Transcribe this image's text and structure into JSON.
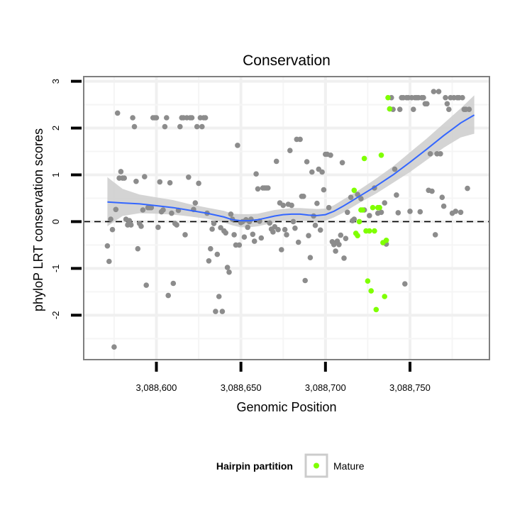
{
  "chart_data": {
    "type": "scatter",
    "title": "Conservation",
    "xlabel": "Genomic Position",
    "ylabel": "phyloP LRT conservation scores",
    "xlim": [
      3088557,
      3088797
    ],
    "ylim": [
      -2.95,
      3.1
    ],
    "x_ticks": [
      3088600,
      3088650,
      3088700,
      3088750
    ],
    "x_tick_labels": [
      "3,088,600",
      "3,088,650",
      "3,088,700",
      "3,088,750"
    ],
    "y_ticks": [
      -2,
      -1,
      0,
      1,
      2,
      3
    ],
    "y_tick_labels": [
      "-2",
      "-1",
      "0",
      "1",
      "2",
      "3"
    ],
    "reference_line": {
      "y": 0,
      "style": "dashed",
      "color": "#000000"
    },
    "grid": true,
    "legend": {
      "title": "Hairpin partition",
      "position": "bottom",
      "entries": [
        {
          "label": "Mature",
          "color": "#7fff00"
        }
      ]
    },
    "colors": {
      "other_points": "#8c8c8c",
      "mature_points": "#7fff00",
      "smooth_line": "#3366ff",
      "ribbon": "#cccccc",
      "panel_border": "#7f7f7f"
    },
    "series": [
      {
        "name": "",
        "color": "#8c8c8c",
        "points": [
          [
            3088571,
            -0.52
          ],
          [
            3088572,
            -0.85
          ],
          [
            3088573,
            0.05
          ],
          [
            3088574,
            -0.17
          ],
          [
            3088575,
            -2.68
          ],
          [
            3088576,
            0.26
          ],
          [
            3088577,
            2.32
          ],
          [
            3088578,
            0.93
          ],
          [
            3088579,
            1.07
          ],
          [
            3088580,
            0.93
          ],
          [
            3088581,
            0.93
          ],
          [
            3088582,
            0.05
          ],
          [
            3088583,
            -0.07
          ],
          [
            3088584,
            0.02
          ],
          [
            3088585,
            -0.07
          ],
          [
            3088586,
            2.22
          ],
          [
            3088587,
            2.03
          ],
          [
            3088588,
            0.86
          ],
          [
            3088589,
            -0.58
          ],
          [
            3088590,
            -0.04
          ],
          [
            3088591,
            -0.1
          ],
          [
            3088592,
            0.25
          ],
          [
            3088593,
            0.96
          ],
          [
            3088594,
            -1.36
          ],
          [
            3088595,
            0.3
          ],
          [
            3088596,
            0.3
          ],
          [
            3088597,
            0.3
          ],
          [
            3088598,
            2.22
          ],
          [
            3088599,
            2.22
          ],
          [
            3088600,
            2.22
          ],
          [
            3088601,
            -0.12
          ],
          [
            3088602,
            0.85
          ],
          [
            3088603,
            0.21
          ],
          [
            3088604,
            0.25
          ],
          [
            3088605,
            2.03
          ],
          [
            3088606,
            2.22
          ],
          [
            3088607,
            -1.58
          ],
          [
            3088608,
            0.83
          ],
          [
            3088609,
            0.18
          ],
          [
            3088610,
            -1.32
          ],
          [
            3088611,
            -0.04
          ],
          [
            3088612,
            -0.07
          ],
          [
            3088613,
            0.24
          ],
          [
            3088614,
            2.03
          ],
          [
            3088615,
            2.22
          ],
          [
            3088616,
            2.22
          ],
          [
            3088617,
            -0.28
          ],
          [
            3088618,
            2.22
          ],
          [
            3088619,
            0.95
          ],
          [
            3088620,
            2.22
          ],
          [
            3088621,
            2.22
          ],
          [
            3088622,
            0.26
          ],
          [
            3088623,
            0.4
          ],
          [
            3088624,
            2.03
          ],
          [
            3088625,
            0.82
          ],
          [
            3088626,
            2.22
          ],
          [
            3088627,
            2.03
          ],
          [
            3088628,
            2.22
          ],
          [
            3088629,
            2.22
          ],
          [
            3088630,
            0.18
          ],
          [
            3088631,
            -0.84
          ],
          [
            3088632,
            -0.58
          ],
          [
            3088633,
            -0.16
          ],
          [
            3088634,
            -0.04
          ],
          [
            3088635,
            -1.92
          ],
          [
            3088636,
            -0.7
          ],
          [
            3088637,
            -1.6
          ],
          [
            3088638,
            -0.13
          ],
          [
            3088639,
            -1.92
          ],
          [
            3088640,
            -0.2
          ],
          [
            3088641,
            -0.24
          ],
          [
            3088642,
            -0.98
          ],
          [
            3088643,
            -1.08
          ],
          [
            3088644,
            0.16
          ],
          [
            3088645,
            0.05
          ],
          [
            3088646,
            -0.28
          ],
          [
            3088647,
            -0.5
          ],
          [
            3088648,
            1.63
          ],
          [
            3088649,
            -0.5
          ],
          [
            3088650,
            -0.02
          ],
          [
            3088651,
            0.0
          ],
          [
            3088652,
            -0.33
          ],
          [
            3088653,
            0.04
          ],
          [
            3088654,
            -0.12
          ],
          [
            3088655,
            0.0
          ],
          [
            3088656,
            0.05
          ],
          [
            3088657,
            -0.27
          ],
          [
            3088658,
            -0.42
          ],
          [
            3088659,
            1.02
          ],
          [
            3088660,
            0.7
          ],
          [
            3088661,
            0.01
          ],
          [
            3088662,
            -0.35
          ],
          [
            3088663,
            0.72
          ],
          [
            3088664,
            0.72
          ],
          [
            3088665,
            0.72
          ],
          [
            3088666,
            0.72
          ],
          [
            3088667,
            -0.03
          ],
          [
            3088668,
            -0.16
          ],
          [
            3088669,
            -0.22
          ],
          [
            3088670,
            -0.11
          ],
          [
            3088671,
            1.29
          ],
          [
            3088672,
            -0.17
          ],
          [
            3088673,
            0.4
          ],
          [
            3088674,
            -0.6
          ],
          [
            3088675,
            0.35
          ],
          [
            3088676,
            -0.17
          ],
          [
            3088677,
            -0.28
          ],
          [
            3088678,
            0.37
          ],
          [
            3088679,
            1.52
          ],
          [
            3088680,
            0.35
          ],
          [
            3088681,
            0.0
          ],
          [
            3088682,
            -0.14
          ],
          [
            3088683,
            1.76
          ],
          [
            3088684,
            -0.44
          ],
          [
            3088685,
            1.76
          ],
          [
            3088686,
            0.54
          ],
          [
            3088687,
            0.54
          ],
          [
            3088688,
            -1.26
          ],
          [
            3088689,
            1.28
          ],
          [
            3088690,
            -0.3
          ],
          [
            3088691,
            -0.77
          ],
          [
            3088692,
            1.06
          ],
          [
            3088693,
            0.12
          ],
          [
            3088694,
            -0.08
          ],
          [
            3088695,
            0.39
          ],
          [
            3088696,
            1.12
          ],
          [
            3088697,
            -0.18
          ],
          [
            3088698,
            1.06
          ],
          [
            3088699,
            0.68
          ],
          [
            3088700,
            1.44
          ],
          [
            3088701,
            1.44
          ],
          [
            3088702,
            0.3
          ],
          [
            3088703,
            1.42
          ],
          [
            3088704,
            -0.43
          ],
          [
            3088705,
            -0.49
          ],
          [
            3088706,
            -0.63
          ],
          [
            3088707,
            -0.42
          ],
          [
            3088708,
            -0.49
          ],
          [
            3088709,
            -0.29
          ],
          [
            3088710,
            1.26
          ],
          [
            3088711,
            -0.78
          ],
          [
            3088712,
            -0.36
          ],
          [
            3088713,
            0.2
          ],
          [
            3088715,
            0.52
          ],
          [
            3088716,
            0.02
          ],
          [
            3088717,
            0.05
          ],
          [
            3088719,
            0.58
          ],
          [
            3088721,
            0.49
          ],
          [
            3088723,
            0.25
          ],
          [
            3088726,
            0.13
          ],
          [
            3088729,
            0.72
          ],
          [
            3088731,
            0.18
          ],
          [
            3088733,
            0.2
          ],
          [
            3088735,
            0.4
          ],
          [
            3088736,
            -0.48
          ],
          [
            3088738,
            2.41
          ],
          [
            3088739,
            2.65
          ],
          [
            3088740,
            2.4
          ],
          [
            3088741,
            1.12
          ],
          [
            3088742,
            0.57
          ],
          [
            3088743,
            0.19
          ],
          [
            3088744,
            2.4
          ],
          [
            3088745,
            2.65
          ],
          [
            3088746,
            2.65
          ],
          [
            3088747,
            -1.33
          ],
          [
            3088748,
            2.65
          ],
          [
            3088749,
            2.65
          ],
          [
            3088750,
            0.22
          ],
          [
            3088751,
            2.65
          ],
          [
            3088752,
            2.4
          ],
          [
            3088753,
            2.65
          ],
          [
            3088754,
            2.65
          ],
          [
            3088755,
            2.65
          ],
          [
            3088756,
            0.21
          ],
          [
            3088757,
            2.65
          ],
          [
            3088758,
            2.65
          ],
          [
            3088759,
            2.52
          ],
          [
            3088760,
            2.52
          ],
          [
            3088761,
            0.67
          ],
          [
            3088762,
            1.45
          ],
          [
            3088763,
            0.65
          ],
          [
            3088764,
            2.78
          ],
          [
            3088765,
            -0.28
          ],
          [
            3088766,
            1.45
          ],
          [
            3088767,
            2.78
          ],
          [
            3088768,
            1.45
          ],
          [
            3088769,
            0.52
          ],
          [
            3088770,
            0.33
          ],
          [
            3088771,
            2.65
          ],
          [
            3088772,
            2.52
          ],
          [
            3088773,
            2.4
          ],
          [
            3088774,
            2.65
          ],
          [
            3088775,
            0.18
          ],
          [
            3088776,
            2.65
          ],
          [
            3088777,
            0.22
          ],
          [
            3088778,
            2.65
          ],
          [
            3088779,
            2.65
          ],
          [
            3088780,
            0.2
          ],
          [
            3088781,
            2.65
          ],
          [
            3088782,
            2.4
          ],
          [
            3088783,
            2.4
          ],
          [
            3088784,
            0.71
          ],
          [
            3088785,
            2.4
          ]
        ]
      },
      {
        "name": "Mature",
        "color": "#7fff00",
        "points": [
          [
            3088717,
            0.67
          ],
          [
            3088718,
            -0.25
          ],
          [
            3088719,
            -0.3
          ],
          [
            3088720,
            0.0
          ],
          [
            3088721,
            0.25
          ],
          [
            3088722,
            0.25
          ],
          [
            3088723,
            1.35
          ],
          [
            3088724,
            -0.2
          ],
          [
            3088725,
            -1.27
          ],
          [
            3088726,
            -0.2
          ],
          [
            3088727,
            -1.48
          ],
          [
            3088728,
            0.3
          ],
          [
            3088729,
            -0.2
          ],
          [
            3088730,
            -1.88
          ],
          [
            3088731,
            0.3
          ],
          [
            3088732,
            0.3
          ],
          [
            3088733,
            1.42
          ],
          [
            3088734,
            -0.45
          ],
          [
            3088735,
            -1.6
          ],
          [
            3088736,
            -0.4
          ],
          [
            3088737,
            2.65
          ],
          [
            3088738,
            2.41
          ]
        ]
      }
    ],
    "smooth": {
      "x": [
        3088571,
        3088580,
        3088590,
        3088600,
        3088610,
        3088620,
        3088630,
        3088640,
        3088645,
        3088650,
        3088655,
        3088660,
        3088665,
        3088670,
        3088675,
        3088680,
        3088685,
        3088690,
        3088695,
        3088700,
        3088705,
        3088710,
        3088715,
        3088720,
        3088730,
        3088740,
        3088750,
        3088760,
        3088770,
        3088780,
        3088788
      ],
      "y": [
        0.42,
        0.4,
        0.38,
        0.34,
        0.3,
        0.24,
        0.18,
        0.1,
        0.04,
        0.02,
        0.02,
        0.04,
        0.08,
        0.12,
        0.15,
        0.16,
        0.16,
        0.14,
        0.13,
        0.15,
        0.22,
        0.32,
        0.43,
        0.54,
        0.76,
        1.0,
        1.27,
        1.55,
        1.84,
        2.11,
        2.28
      ],
      "upper": [
        0.95,
        0.7,
        0.58,
        0.52,
        0.46,
        0.37,
        0.3,
        0.23,
        0.17,
        0.16,
        0.16,
        0.17,
        0.21,
        0.25,
        0.27,
        0.29,
        0.29,
        0.28,
        0.27,
        0.28,
        0.35,
        0.46,
        0.57,
        0.68,
        0.92,
        1.18,
        1.48,
        1.78,
        2.1,
        2.42,
        2.7
      ],
      "lower": [
        -0.1,
        0.12,
        0.18,
        0.17,
        0.15,
        0.11,
        0.06,
        -0.02,
        -0.08,
        -0.12,
        -0.12,
        -0.1,
        -0.06,
        -0.02,
        0.02,
        0.03,
        0.03,
        0.01,
        -0.01,
        0.02,
        0.09,
        0.18,
        0.29,
        0.4,
        0.6,
        0.83,
        1.06,
        1.32,
        1.58,
        1.8,
        1.88
      ]
    }
  }
}
